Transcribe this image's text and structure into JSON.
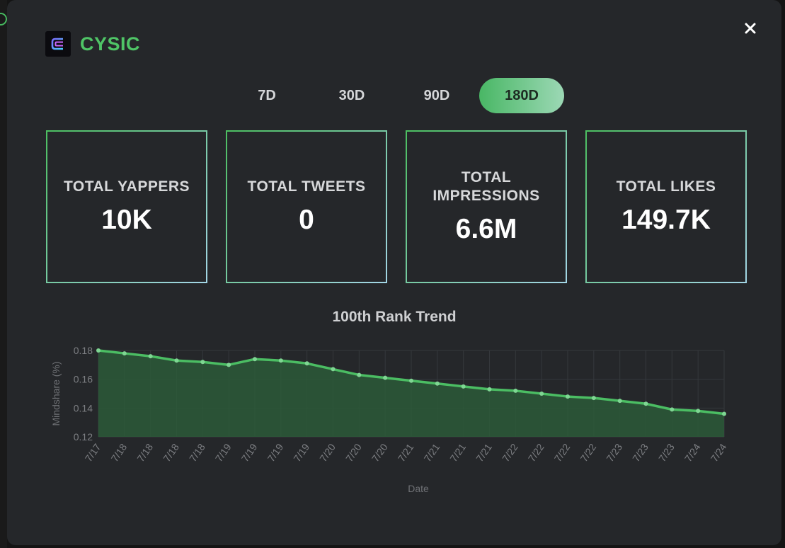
{
  "app": {
    "title": "CYSIC",
    "logo_icon": "cysic-logo-icon",
    "close_label": "×"
  },
  "tabs": [
    {
      "label": "7D",
      "active": false
    },
    {
      "label": "30D",
      "active": false
    },
    {
      "label": "90D",
      "active": false
    },
    {
      "label": "180D",
      "active": true
    }
  ],
  "stats": [
    {
      "label": "TOTAL YAPPERS",
      "value": "10K"
    },
    {
      "label": "TOTAL TWEETS",
      "value": "0"
    },
    {
      "label": "TOTAL IMPRESSIONS",
      "value": "6.6M"
    },
    {
      "label": "TOTAL LIKES",
      "value": "149.7K"
    }
  ],
  "colors": {
    "accent": "#4fc466",
    "line": "#4bbd63",
    "fill": "#2c5a38",
    "background": "#25272a"
  },
  "chart_data": {
    "type": "area",
    "title": "100th Rank Trend",
    "xlabel": "Date",
    "ylabel": "Mindshare (%)",
    "ylim": [
      0.12,
      0.18
    ],
    "yticks": [
      0.12,
      0.14,
      0.16,
      0.18
    ],
    "ytick_labels": [
      "0.12",
      "0.14",
      "0.16",
      "0.18"
    ],
    "grid": true,
    "legend": "none",
    "x": [
      "7/17",
      "7/18",
      "7/18",
      "7/18",
      "7/18",
      "7/19",
      "7/19",
      "7/19",
      "7/19",
      "7/20",
      "7/20",
      "7/20",
      "7/21",
      "7/21",
      "7/21",
      "7/21",
      "7/22",
      "7/22",
      "7/22",
      "7/22",
      "7/23",
      "7/23",
      "7/23",
      "7/24",
      "7/24"
    ],
    "series": [
      {
        "values": [
          0.18,
          0.178,
          0.176,
          0.173,
          0.172,
          0.17,
          0.174,
          0.173,
          0.171,
          0.167,
          0.163,
          0.161,
          0.159,
          0.157,
          0.155,
          0.153,
          0.152,
          0.15,
          0.148,
          0.147,
          0.145,
          0.143,
          0.139,
          0.138,
          0.136
        ]
      }
    ]
  }
}
